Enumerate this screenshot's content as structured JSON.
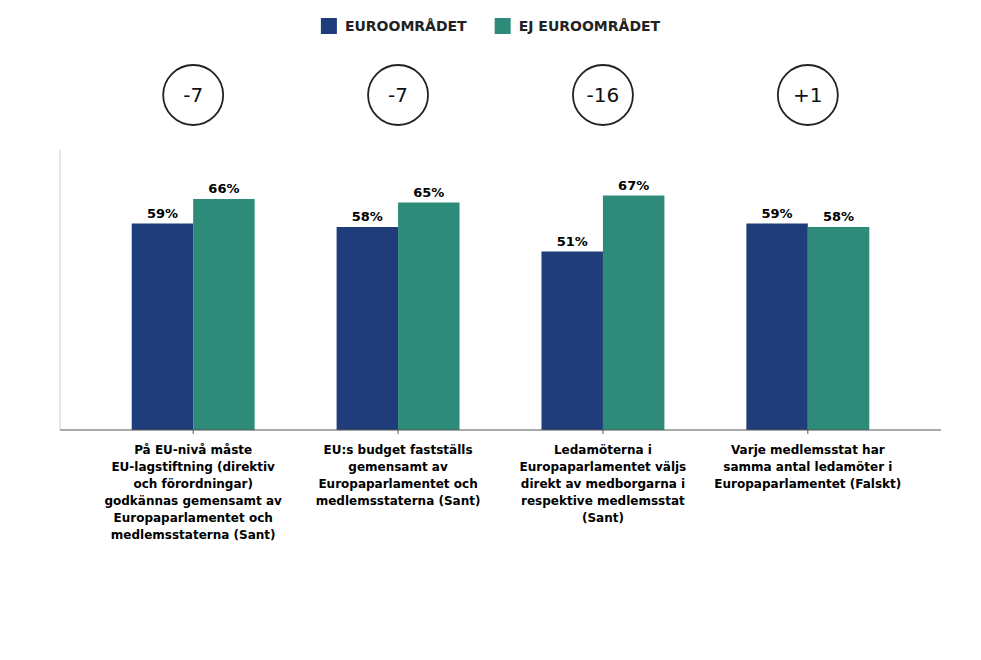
{
  "chart_data": {
    "type": "bar",
    "categories": [
      "På EU-nivå måste\nEU-lagstiftning (direktiv\noch förordningar)\ngodkännas gemensamt av\nEuropaparlamentet och\nmedlemsstaterna (Sant)",
      "EU:s budget fastställs\ngemensamt av\nEuropaparlamentet och\nmedlemsstaterna (Sant)",
      "Ledamöterna i\nEuropaparlamentet väljs\ndirekt av medborgarna i\nrespektive medlemsstat\n(Sant)",
      "Varje medlemsstat har\nsamma antal ledamöter i\nEuropaparlamentet (Falskt)"
    ],
    "series": [
      {
        "name": "EUROOMRÅDET",
        "color": "#1F3D7A",
        "values": [
          59,
          58,
          51,
          59
        ],
        "value_labels": [
          "59%",
          "58%",
          "51%",
          "59%"
        ]
      },
      {
        "name": "EJ EUROOMRÅDET",
        "color": "#2E8B7A",
        "values": [
          66,
          65,
          67,
          58
        ],
        "value_labels": [
          "66%",
          "65%",
          "67%",
          "58%"
        ]
      }
    ],
    "annotations": [
      "-7",
      "-7",
      "-16",
      "+1"
    ],
    "ylim": [
      0,
      80
    ],
    "yticks": [],
    "tick_labels": "x",
    "data_labels": true,
    "legend": "top",
    "grid": false
  }
}
